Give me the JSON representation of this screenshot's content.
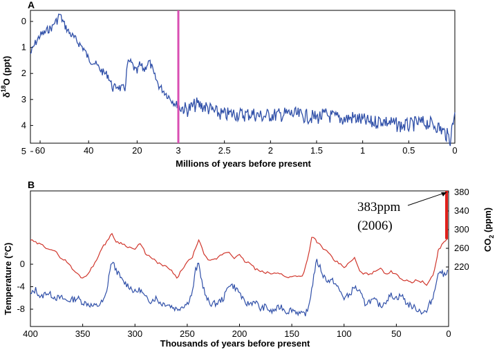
{
  "colors": {
    "series_blue": "#2f4fa8",
    "series_red": "#d0352b",
    "marker_magenta": "#d94fb3",
    "co2_bar": "#e0201b"
  },
  "chart_data": [
    {
      "panel": "A",
      "type": "line",
      "xlabel": "Millions of years before present",
      "ylabel": "δ18O (ppt)",
      "y_inverted": true,
      "ylim": [
        0,
        5
      ],
      "yticks": [
        "0",
        "1",
        "2",
        "3",
        "4",
        "5"
      ],
      "xticks_left": [
        "60",
        "40",
        "20",
        "3"
      ],
      "xticks_right": [
        "3",
        "2.5",
        "2",
        "1.5",
        "1",
        "0.5",
        "0"
      ],
      "x_axis_note": "split scale: 65–3 Ma compressed, 3–0 Ma expanded",
      "divider_at": 3,
      "series": [
        {
          "values_x": [
            64,
            62,
            60,
            58,
            57,
            56,
            55,
            54,
            53,
            52,
            51,
            50,
            48,
            46,
            44,
            42,
            40,
            38,
            36,
            34,
            32,
            30,
            28,
            27,
            26,
            25,
            24,
            23,
            22,
            21,
            20,
            19,
            18,
            17,
            16,
            15,
            14,
            13,
            12,
            11,
            10,
            9,
            8,
            7,
            6,
            5,
            4,
            3.5,
            3,
            2.98,
            2.9,
            2.8,
            2.7,
            2.6,
            2.5,
            2.4,
            2.3,
            2.2,
            2.1,
            2.0,
            1.9,
            1.8,
            1.7,
            1.6,
            1.5,
            1.4,
            1.3,
            1.2,
            1.1,
            1.0,
            0.9,
            0.8,
            0.7,
            0.6,
            0.5,
            0.4,
            0.3,
            0.2,
            0.1,
            0.05,
            0
          ],
          "values_y": [
            1.3,
            0.9,
            0.6,
            0.5,
            0.4,
            0.35,
            0.3,
            0.1,
            0.05,
            -0.2,
            0.0,
            0.2,
            0.5,
            0.7,
            0.9,
            1.1,
            1.5,
            1.6,
            1.8,
            2.0,
            2.1,
            2.6,
            2.5,
            2.6,
            2.6,
            2.6,
            1.7,
            1.6,
            1.7,
            1.9,
            2.0,
            1.7,
            1.8,
            1.9,
            1.7,
            1.6,
            1.8,
            2.1,
            2.3,
            2.5,
            2.6,
            2.7,
            2.8,
            2.9,
            3.0,
            3.1,
            3.2,
            3.2,
            3.3,
            3.3,
            3.4,
            3.2,
            3.3,
            3.5,
            3.6,
            3.55,
            3.6,
            3.55,
            3.65,
            3.6,
            3.6,
            3.55,
            3.6,
            3.65,
            3.7,
            3.6,
            3.7,
            3.75,
            3.7,
            3.8,
            3.9,
            3.8,
            3.9,
            4.0,
            4.0,
            3.9,
            3.9,
            4.0,
            4.3,
            4.5,
            3.5
          ]
        }
      ]
    },
    {
      "panel": "B",
      "type": "line",
      "xlabel": "Thousands of years before present",
      "ylabel_left": "Temperature (°C)",
      "ylabel_right": "CO2 (ppm)",
      "xlim": [
        400,
        0
      ],
      "xticks": [
        "400",
        "350",
        "300",
        "250",
        "200",
        "150",
        "100",
        "50",
        "0"
      ],
      "yticks_left": [
        "0",
        "-4",
        "-8"
      ],
      "yticks_right": [
        "380",
        "340",
        "300",
        "260",
        "220"
      ],
      "series": [
        {
          "axis": "temperature",
          "x": [
            400,
            395,
            390,
            385,
            380,
            375,
            370,
            365,
            360,
            355,
            350,
            345,
            340,
            335,
            330,
            327,
            325,
            322,
            318,
            312,
            305,
            300,
            295,
            290,
            285,
            280,
            275,
            270,
            265,
            260,
            255,
            250,
            245,
            242,
            239,
            236,
            232,
            228,
            222,
            215,
            210,
            205,
            200,
            195,
            190,
            185,
            180,
            175,
            170,
            165,
            160,
            155,
            150,
            145,
            140,
            135,
            131,
            128,
            126,
            123,
            120,
            115,
            110,
            105,
            100,
            95,
            90,
            85,
            80,
            75,
            70,
            65,
            60,
            55,
            50,
            45,
            40,
            35,
            30,
            25,
            21,
            18,
            15,
            12,
            10,
            8,
            5,
            3,
            1
          ],
          "y": [
            -5.5,
            -4.5,
            -6,
            -5,
            -5.5,
            -6,
            -6,
            -6.5,
            -6.3,
            -6,
            -6.8,
            -7,
            -7.5,
            -7.3,
            -6.5,
            -5,
            -2,
            0.5,
            -1,
            -3,
            -4,
            -5,
            -4.5,
            -6,
            -6.5,
            -6,
            -7,
            -7,
            -7.5,
            -8,
            -7.5,
            -7,
            -5,
            -1,
            0,
            -3,
            -6,
            -7,
            -7,
            -6,
            -3.5,
            -4,
            -5,
            -7,
            -7,
            -6.5,
            -8,
            -7.5,
            -8.5,
            -8,
            -7.5,
            -8.5,
            -8,
            -8.5,
            -9,
            -8.5,
            -4.5,
            -1,
            0.5,
            -0.5,
            -2,
            -3,
            -3,
            -4.5,
            -6,
            -5.5,
            -4,
            -5,
            -7,
            -6.5,
            -6.5,
            -7.5,
            -6.5,
            -5.5,
            -6,
            -5.5,
            -7,
            -7.5,
            -8,
            -8.5,
            -8.5,
            -7,
            -6,
            -3,
            -2,
            -1,
            -2,
            -1.5,
            -1
          ]
        },
        {
          "axis": "co2",
          "x": [
            400,
            395,
            390,
            385,
            380,
            375,
            370,
            365,
            360,
            355,
            350,
            345,
            340,
            335,
            330,
            327,
            325,
            322,
            318,
            312,
            305,
            300,
            295,
            290,
            285,
            280,
            275,
            270,
            265,
            260,
            255,
            250,
            245,
            242,
            239,
            236,
            232,
            228,
            222,
            215,
            210,
            205,
            200,
            195,
            190,
            185,
            180,
            175,
            170,
            165,
            160,
            155,
            150,
            145,
            140,
            135,
            131,
            128,
            126,
            123,
            120,
            115,
            110,
            105,
            100,
            95,
            90,
            85,
            80,
            75,
            70,
            65,
            60,
            55,
            50,
            45,
            40,
            35,
            30,
            25,
            21,
            18,
            15,
            12,
            10,
            8,
            5,
            3,
            1
          ],
          "y": [
            278,
            272,
            268,
            262,
            258,
            250,
            238,
            232,
            216,
            205,
            196,
            206,
            222,
            245,
            265,
            275,
            282,
            290,
            275,
            270,
            262,
            258,
            270,
            250,
            240,
            232,
            225,
            220,
            212,
            195,
            215,
            230,
            240,
            262,
            278,
            260,
            240,
            232,
            238,
            250,
            252,
            240,
            245,
            232,
            228,
            216,
            210,
            208,
            206,
            206,
            207,
            197,
            199,
            202,
            200,
            235,
            283,
            280,
            273,
            268,
            260,
            250,
            235,
            228,
            220,
            228,
            240,
            210,
            205,
            206,
            210,
            220,
            203,
            210,
            206,
            194,
            190,
            188,
            192,
            188,
            182,
            190,
            202,
            230,
            255,
            262,
            272,
            278,
            280
          ]
        },
        {
          "axis": "co2",
          "name": "383ppm (2006)",
          "note": "modern CO2 bar from ~280 to 383 ppm",
          "x": [
            0,
            0
          ],
          "y": [
            280,
            383
          ]
        }
      ],
      "annotations": [
        "383ppm",
        "(2006)"
      ]
    }
  ],
  "labels": {
    "panel_a": "A",
    "panel_b": "B",
    "a_xlabel": "Millions of years before present",
    "b_xlabel": "Thousands of years before present",
    "a_ylabel_main": "δ",
    "a_ylabel_sup": "18",
    "a_ylabel_rest": "O (ppt)",
    "b_ylabel_left": "Temperature (°C)",
    "b_ylabel_right_main": "CO",
    "b_ylabel_right_sub": "2",
    "b_ylabel_right_rest": " (ppm)",
    "ann_line1": "383ppm",
    "ann_line2": "(2006)"
  }
}
